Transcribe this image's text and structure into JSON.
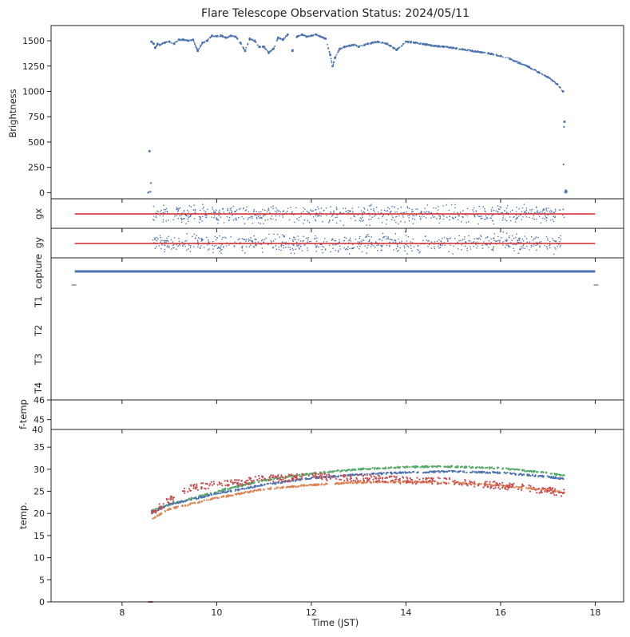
{
  "chart_data": {
    "type": "scatter",
    "title": "Flare Telescope Observation Status: 2024/05/11",
    "xlabel": "Time (JST)",
    "xlim": [
      6.5,
      18.6
    ],
    "xticks": [
      8,
      10,
      12,
      14,
      16,
      18
    ],
    "panels": [
      {
        "name": "brightness",
        "ylabel": "Brightness",
        "ylim": [
          -60,
          1650
        ],
        "yticks": [
          0,
          250,
          500,
          750,
          1000,
          1250,
          1500
        ],
        "series": [
          {
            "name": "brightness",
            "color": "#4c72b0",
            "x": [
              8.58,
              8.62,
              8.67,
              8.7,
              8.75,
              8.8,
              8.9,
              9.0,
              9.1,
              9.2,
              9.3,
              9.4,
              9.5,
              9.6,
              9.7,
              9.8,
              9.9,
              10.0,
              10.1,
              10.2,
              10.3,
              10.4,
              10.5,
              10.6,
              10.7,
              10.8,
              10.9,
              11.0,
              11.1,
              11.2,
              11.3,
              11.4,
              11.5,
              11.6,
              11.7,
              11.8,
              11.9,
              12.0,
              12.1,
              12.2,
              12.3,
              12.4,
              12.45,
              12.5,
              12.6,
              12.7,
              12.8,
              12.9,
              13.0,
              13.2,
              13.4,
              13.6,
              13.8,
              14.0,
              14.2,
              14.4,
              14.6,
              14.8,
              15.0,
              15.2,
              15.4,
              15.6,
              15.8,
              16.0,
              16.2,
              16.4,
              16.6,
              16.8,
              17.0,
              17.2,
              17.32,
              17.35,
              17.38
            ],
            "y": [
              410,
              1490,
              1470,
              1430,
              1470,
              1460,
              1480,
              1490,
              1470,
              1510,
              1510,
              1500,
              1510,
              1400,
              1480,
              1500,
              1550,
              1545,
              1550,
              1530,
              1550,
              1540,
              1480,
              1400,
              1520,
              1500,
              1440,
              1440,
              1380,
              1420,
              1530,
              1510,
              1560,
              1400,
              1540,
              1560,
              1540,
              1550,
              1560,
              1540,
              1520,
              1360,
              1250,
              1330,
              1420,
              1440,
              1450,
              1460,
              1440,
              1470,
              1490,
              1470,
              1410,
              1490,
              1480,
              1465,
              1450,
              1440,
              1430,
              1415,
              1400,
              1385,
              1370,
              1350,
              1320,
              1280,
              1240,
              1190,
              1140,
              1070,
              1000,
              700,
              20
            ]
          }
        ]
      },
      {
        "name": "gx",
        "ylabel": "gx",
        "reference_line_color": "#d62728"
      },
      {
        "name": "gy",
        "ylabel": "gy",
        "reference_line_color": "#d62728"
      },
      {
        "name": "status",
        "category_labels": [
          "capture",
          "T1",
          "T2",
          "T3",
          "T4"
        ],
        "capture_line": {
          "x": [
            7.0,
            18.0
          ],
          "color": "#4c72b0"
        }
      },
      {
        "name": "f-temp",
        "ylabel": "f-temp",
        "ylim": [
          44.5,
          46
        ],
        "yticks": [
          45,
          46
        ]
      },
      {
        "name": "temp",
        "ylabel": "temp.",
        "ylim": [
          0,
          39
        ],
        "yticks": [
          0,
          5,
          10,
          15,
          20,
          25,
          30,
          35
        ],
        "top_tick": "40",
        "series": [
          {
            "name": "green",
            "color": "#55a868",
            "x": [
              8.6,
              9,
              10,
              11,
              12,
              13,
              14,
              15,
              16,
              17,
              17.35
            ],
            "y": [
              20.5,
              22,
              25,
              27.5,
              29,
              30,
              30.5,
              30.6,
              30.2,
              29.2,
              28.5
            ]
          },
          {
            "name": "blue",
            "color": "#4c72b0",
            "x": [
              8.6,
              9,
              10,
              11,
              12,
              13,
              14,
              15,
              16,
              17,
              17.35
            ],
            "y": [
              20,
              22,
              24.5,
              26.5,
              28,
              28.8,
              29.3,
              29.5,
              29.2,
              28.3,
              27.8
            ]
          },
          {
            "name": "orange",
            "color": "#dd8452",
            "x": [
              8.6,
              9,
              10,
              11,
              12,
              13,
              14,
              15,
              16,
              17,
              17.35
            ],
            "y": [
              18.5,
              21,
              23.5,
              25.5,
              26.5,
              27,
              27.2,
              27,
              26.3,
              25.3,
              24.7
            ]
          },
          {
            "name": "red",
            "color": "#c44e52",
            "x": [
              8.6,
              9,
              9.5,
              10,
              10.5,
              11,
              11.5,
              12,
              12.5,
              13,
              13.5,
              14,
              14.5,
              15,
              15.5,
              16,
              16.5,
              17,
              17.35
            ],
            "y": [
              20,
              23,
              26,
              26.5,
              27,
              28,
              28,
              28.5,
              28,
              28,
              27.8,
              27.5,
              27.5,
              27.2,
              26.8,
              26.3,
              25.8,
              25.2,
              24.6
            ]
          }
        ]
      }
    ]
  }
}
